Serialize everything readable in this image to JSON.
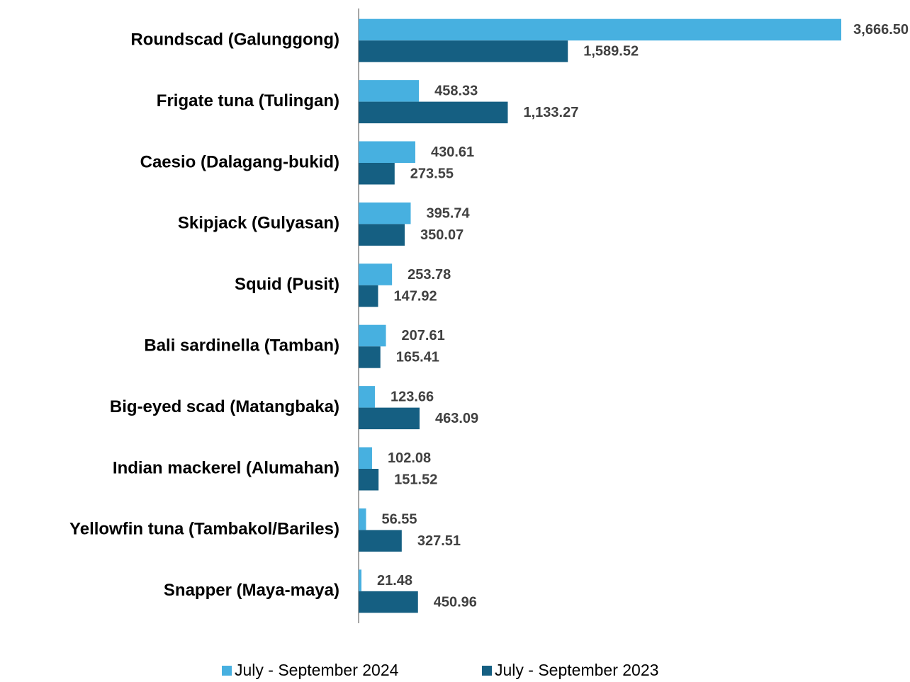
{
  "chart_data": {
    "type": "bar",
    "orientation": "horizontal",
    "categories": [
      "Roundscad (Galunggong)",
      "Frigate tuna (Tulingan)",
      "Caesio (Dalagang-bukid)",
      "Skipjack (Gulyasan)",
      "Squid (Pusit)",
      "Bali sardinella (Tamban)",
      "Big-eyed scad (Matangbaka)",
      "Indian mackerel (Alumahan)",
      "Yellowfin tuna (Tambakol/Bariles)",
      "Snapper (Maya-maya)"
    ],
    "series": [
      {
        "name": "July - September 2024",
        "color": "#47b0e0",
        "values": [
          3666.5,
          458.33,
          430.61,
          395.74,
          253.78,
          207.61,
          123.66,
          102.08,
          56.55,
          21.48
        ],
        "value_labels": [
          "3,666.50",
          "458.33",
          "430.61",
          "395.74",
          "253.78",
          "207.61",
          "123.66",
          "102.08",
          "56.55",
          "21.48"
        ]
      },
      {
        "name": "July - September 2023",
        "color": "#155f82",
        "values": [
          1589.52,
          1133.27,
          273.55,
          350.07,
          147.92,
          165.41,
          463.09,
          151.52,
          327.51,
          450.96
        ],
        "value_labels": [
          "1,589.52",
          "1,133.27",
          "273.55",
          "350.07",
          "147.92",
          "165.41",
          "463.09",
          "151.52",
          "327.51",
          "450.96"
        ]
      }
    ],
    "legend": "bottom"
  }
}
